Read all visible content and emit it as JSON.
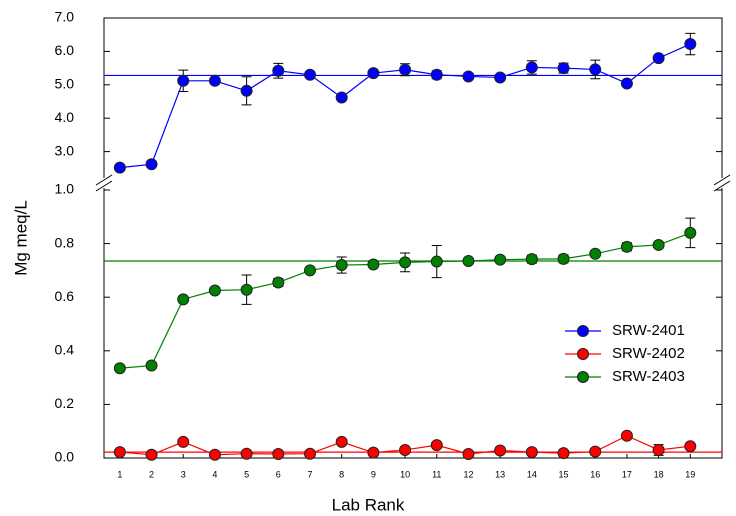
{
  "chart_data": {
    "type": "line",
    "x_label": "Lab Rank",
    "y_label": "Mg meq/L",
    "x": [
      1,
      2,
      3,
      4,
      5,
      6,
      7,
      8,
      9,
      10,
      11,
      12,
      13,
      14,
      15,
      16,
      17,
      18,
      19
    ],
    "xlim": [
      0.5,
      20
    ],
    "panels": [
      {
        "ylim": [
          0,
          1
        ],
        "yticks": [
          {
            "value": 0,
            "label": "0.0"
          },
          {
            "value": 0.2,
            "label": "0.2"
          },
          {
            "value": 0.4,
            "label": "0.4"
          },
          {
            "value": 0.6,
            "label": "0.6"
          },
          {
            "value": 0.8,
            "label": "0.8"
          },
          {
            "value": 1,
            "label": "1.0"
          }
        ]
      },
      {
        "ylim": [
          2,
          7
        ],
        "yticks": [
          {
            "value": 3,
            "label": "3.0"
          },
          {
            "value": 4,
            "label": "4.0"
          },
          {
            "value": 5,
            "label": "5.0"
          },
          {
            "value": 6,
            "label": "6.0"
          },
          {
            "value": 7,
            "label": "7.0"
          }
        ]
      }
    ],
    "legend": "right",
    "series": [
      {
        "name": "SRW-2401",
        "color": "#0000ff",
        "panel": 1,
        "reference": 5.28,
        "values": [
          2.52,
          2.62,
          5.12,
          5.12,
          4.82,
          5.42,
          5.3,
          4.62,
          5.35,
          5.45,
          5.3,
          5.25,
          5.22,
          5.52,
          5.5,
          5.46,
          5.04,
          5.8,
          6.22
        ],
        "errors": [
          0.05,
          0.05,
          0.32,
          0.08,
          0.42,
          0.22,
          0.06,
          0.08,
          0.08,
          0.18,
          0.12,
          0.08,
          0.08,
          0.2,
          0.15,
          0.28,
          0.08,
          0.08,
          0.32
        ]
      },
      {
        "name": "SRW-2402",
        "color": "#ff0000",
        "panel": 0,
        "reference": 0.022,
        "values": [
          0.022,
          0.012,
          0.06,
          0.012,
          0.016,
          0.015,
          0.016,
          0.06,
          0.02,
          0.03,
          0.048,
          0.015,
          0.028,
          0.022,
          0.018,
          0.024,
          0.083,
          0.03,
          0.044
        ],
        "errors": [
          0.004,
          0.003,
          0.006,
          0.003,
          0.004,
          0.003,
          0.003,
          0.006,
          0.004,
          0.008,
          0.006,
          0.003,
          0.006,
          0.004,
          0.004,
          0.004,
          0.008,
          0.02,
          0.008
        ]
      },
      {
        "name": "SRW-2403",
        "color": "#008000",
        "panel": 0,
        "reference": 0.735,
        "values": [
          0.335,
          0.345,
          0.592,
          0.625,
          0.628,
          0.655,
          0.7,
          0.72,
          0.722,
          0.73,
          0.733,
          0.735,
          0.74,
          0.742,
          0.743,
          0.762,
          0.788,
          0.795,
          0.84
        ],
        "errors": [
          0.008,
          0.006,
          0.01,
          0.008,
          0.055,
          0.015,
          0.008,
          0.03,
          0.008,
          0.035,
          0.06,
          0.006,
          0.008,
          0.015,
          0.015,
          0.008,
          0.015,
          0.01,
          0.055
        ]
      }
    ]
  }
}
